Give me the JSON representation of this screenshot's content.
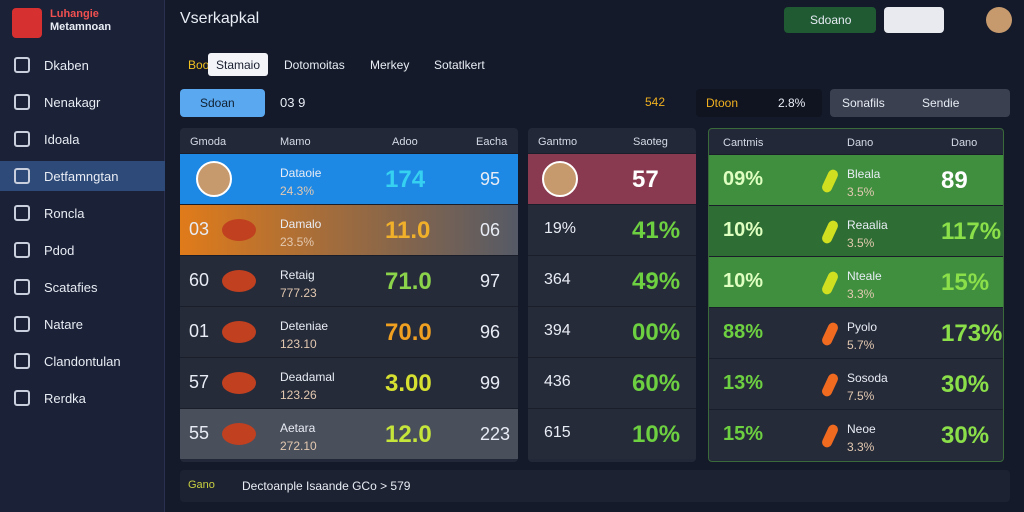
{
  "sidebar": {
    "logo": [
      "Luhangie",
      "Metamnoan"
    ],
    "nav": [
      "Dkaben",
      "Nenakagr",
      "Idoala",
      "Detfamngtan",
      "Roncla",
      "Pdod",
      "Scatafies",
      "Natare",
      "Clandontulan",
      "Rerdka"
    ],
    "active": 3
  },
  "header": {
    "title": "Vserkapkal",
    "button": "Sdoano"
  },
  "tabs": {
    "items": [
      "Boo",
      "Stamaio",
      "Dotomoitas",
      "Merkey",
      "Sotatlkert"
    ],
    "active": 1
  },
  "toolbar": {
    "button": "Sdoan",
    "count": "03 9",
    "code": "542",
    "label": "Dtoon",
    "rate": "2.8%",
    "filter": "Sonafils",
    "select": "Sendie"
  },
  "panels": [
    {
      "headers": [
        "Gmoda",
        "Mamo",
        "Adoo",
        "Eacha"
      ],
      "rows": [
        {
          "name": "Dataoie",
          "sub": "24.3%",
          "score": "174",
          "value": "95"
        },
        {
          "rank": "03",
          "name": "Damalo",
          "sub": "23.5%",
          "score": "11.0",
          "value": "06"
        },
        {
          "rank": "60",
          "name": "Retaig",
          "sub": "777.23",
          "score": "71.0",
          "value": "97"
        },
        {
          "rank": "01",
          "name": "Deteniae",
          "sub": "123.10",
          "score": "70.0",
          "value": "96"
        },
        {
          "rank": "57",
          "name": "Deadamal",
          "sub": "123.26",
          "score": "3.00",
          "value": "99"
        },
        {
          "rank": "55",
          "name": "Aetara",
          "sub": "272.10",
          "score": "12.0",
          "value": "223"
        }
      ]
    },
    {
      "headers": [
        "Gantmo",
        "Saoteg"
      ],
      "rows": [
        {
          "b": "57"
        },
        {
          "a": "19%",
          "b": "41%"
        },
        {
          "a": "364",
          "b": "49%"
        },
        {
          "a": "394",
          "b": "00%"
        },
        {
          "a": "436",
          "b": "60%"
        },
        {
          "a": "615",
          "b": "10%"
        }
      ]
    },
    {
      "headers": [
        "Cantmis",
        "Dano",
        "Dano"
      ],
      "rows": [
        {
          "pct": "09%",
          "name": "Bleala",
          "sub": "3.5%",
          "val": "89"
        },
        {
          "pct": "10%",
          "name": "Reaalia",
          "sub": "3.5%",
          "val": "117%"
        },
        {
          "pct": "10%",
          "name": "Nteale",
          "sub": "3.3%",
          "val": "15%"
        },
        {
          "pct": "88%",
          "name": "Pyolo",
          "sub": "5.7%",
          "val": "173%"
        },
        {
          "pct": "13%",
          "name": "Sosoda",
          "sub": "7.5%",
          "val": "30%"
        },
        {
          "pct": "15%",
          "name": "Neoe",
          "sub": "3.3%",
          "val": "30%"
        }
      ]
    }
  ],
  "footer": {
    "label": "Gano",
    "text": "Dectoanple Isaande GCo > 579"
  }
}
